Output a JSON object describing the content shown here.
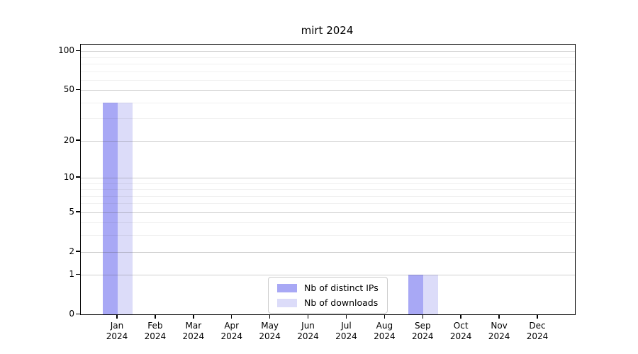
{
  "chart_data": {
    "type": "bar",
    "title": "mirt 2024",
    "xlabel": "",
    "ylabel": "",
    "year_label": "2024",
    "categories": [
      "Jan",
      "Feb",
      "Mar",
      "Apr",
      "May",
      "Jun",
      "Jul",
      "Aug",
      "Sep",
      "Oct",
      "Nov",
      "Dec"
    ],
    "series": [
      {
        "name": "Nb of distinct IPs",
        "color": "#a8a8f5",
        "values": [
          40,
          0,
          0,
          0,
          0,
          0,
          0,
          0,
          1,
          0,
          0,
          0
        ]
      },
      {
        "name": "Nb of downloads",
        "color": "#dcdcf9",
        "values": [
          40,
          0,
          0,
          0,
          0,
          0,
          0,
          0,
          1,
          0,
          0,
          0
        ]
      }
    ],
    "y_axis": {
      "scale": "log1p",
      "tick_values": [
        0,
        1,
        2,
        5,
        10,
        20,
        50,
        100
      ],
      "minor_gridline_values": [
        3,
        4,
        6,
        7,
        8,
        9,
        30,
        40,
        60,
        70,
        80,
        90
      ],
      "ylim": [
        0,
        113
      ]
    },
    "grid": "on",
    "legend": {
      "position": "bottom-center",
      "entries": [
        "Nb of distinct IPs",
        "Nb of downloads"
      ]
    }
  },
  "colors": {
    "background": "#ffffff",
    "spine": "#000000",
    "text": "#000000",
    "legend_border": "#cccccc",
    "series_distinct_ips": "#a8a8f5",
    "series_downloads": "#dcdcf9"
  }
}
